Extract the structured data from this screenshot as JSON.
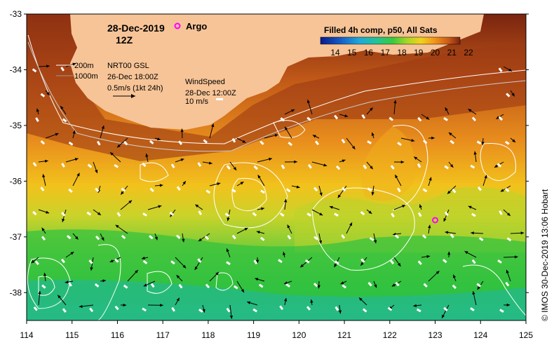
{
  "header": {
    "date": "28-Dec-2019",
    "time": "12Z",
    "argo_label": "Argo"
  },
  "colorbar": {
    "title": "Filled 4h comp, p50, All Sats",
    "ticks": [
      "14",
      "15",
      "16",
      "17",
      "18",
      "19",
      "20",
      "21",
      "22"
    ],
    "colors": [
      "#0b1a8a",
      "#1560c8",
      "#1fa9d8",
      "#22c39a",
      "#3cc93c",
      "#a6d726",
      "#f2d21c",
      "#f29419",
      "#c85a18",
      "#7a2410"
    ]
  },
  "legend": {
    "depth_200": "200m",
    "depth_1000": "1000m",
    "currents_source": "NRT00 GSL",
    "currents_time": "26-Dec 18:00Z",
    "current_scale": "0.5m/s (1kt 24h)",
    "wind_title": "WindSpeed",
    "wind_time": "28-Dec 12:00Z",
    "wind_scale": "10 m/s"
  },
  "axes": {
    "x_ticks": [
      "114",
      "115",
      "116",
      "117",
      "118",
      "119",
      "120",
      "121",
      "122",
      "123",
      "124",
      "125"
    ],
    "y_ticks": [
      "-33",
      "-34",
      "-35",
      "-36",
      "-37",
      "-38"
    ]
  },
  "argo_float": {
    "lon": 123.0,
    "lat": -36.7
  },
  "credit": "© IMOS 30-Dec-2019 13:06 Hobart",
  "colors": {
    "land": "#f7c497",
    "magenta": "#ff00ff"
  }
}
